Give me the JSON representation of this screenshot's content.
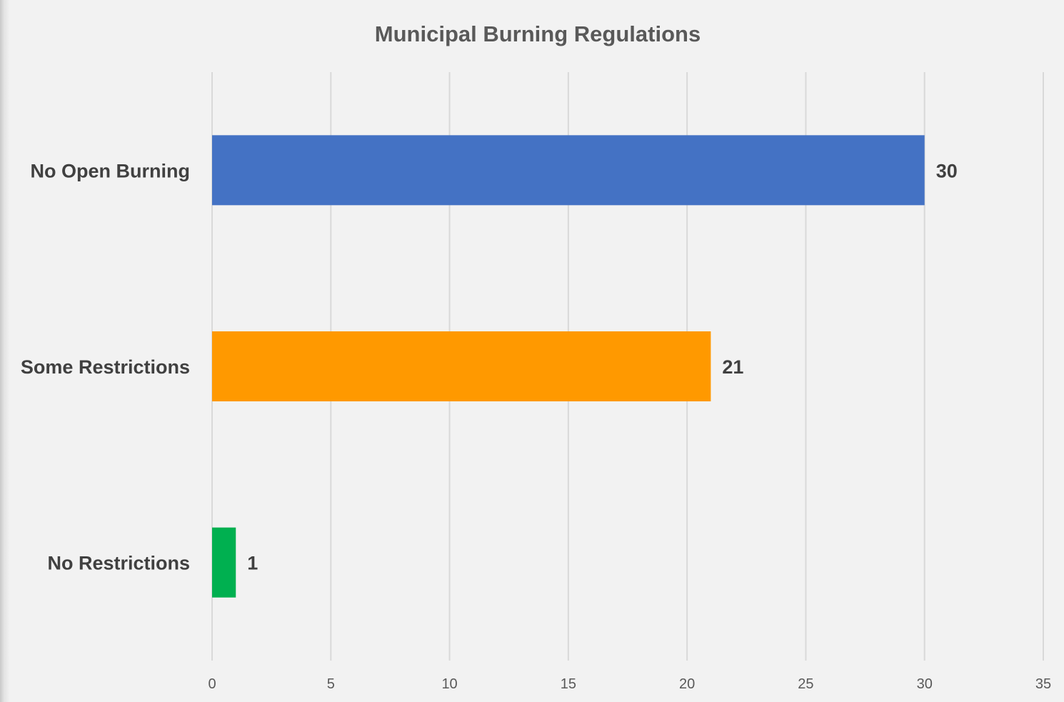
{
  "chart_data": {
    "type": "bar",
    "orientation": "horizontal",
    "title": "Municipal Burning Regulations",
    "xlabel": "",
    "ylabel": "",
    "categories": [
      "No Open Burning",
      "Some Restrictions",
      "No Restrictions"
    ],
    "values": [
      30,
      21,
      1
    ],
    "data_labels": [
      "30",
      "21",
      "1"
    ],
    "colors": [
      "#4472C4",
      "#FF9900",
      "#00B050"
    ],
    "xlim": [
      0,
      35
    ],
    "x_ticks": [
      "0",
      "5",
      "10",
      "15",
      "20",
      "25",
      "30",
      "35"
    ],
    "grid": true,
    "legend": "none"
  }
}
